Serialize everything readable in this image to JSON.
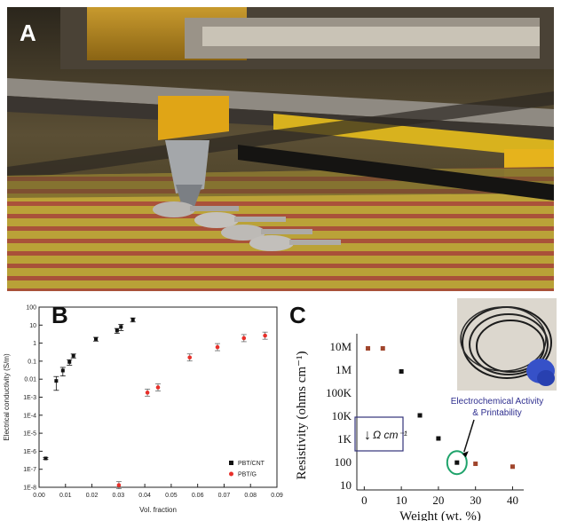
{
  "panels": {
    "a": {
      "letter": "A"
    },
    "b": {
      "letter": "B"
    },
    "c": {
      "letter": "C"
    }
  },
  "chart_data": [
    {
      "panel": "B",
      "type": "scatter",
      "xlabel": "Vol. fraction",
      "ylabel": "Electrical conductivity (S/m)",
      "xlim": [
        0,
        0.09
      ],
      "ylim_exponent": [
        -8,
        2
      ],
      "y_scale": "log",
      "x_ticks": [
        "0.00",
        "0.01",
        "0.02",
        "0.03",
        "0.04",
        "0.05",
        "0.06",
        "0.07",
        "0.08",
        "0.09"
      ],
      "y_ticks": [
        "100",
        "10",
        "1",
        "0.1",
        "0.01",
        "1E-3",
        "1E-4",
        "1E-5",
        "1E-6",
        "1E-7",
        "1E-8"
      ],
      "legend_placement": "bottom-right",
      "series": [
        {
          "name": "PBT/CNT",
          "color": "#111111",
          "points": [
            [
              0.0025,
              4e-07
            ],
            [
              0.0065,
              0.008
            ],
            [
              0.009,
              0.03
            ],
            [
              0.0115,
              0.09
            ],
            [
              0.013,
              0.2
            ],
            [
              0.0215,
              1.7
            ],
            [
              0.0295,
              5
            ],
            [
              0.031,
              8
            ],
            [
              0.0355,
              20
            ]
          ],
          "error_low": [
            5e-08,
            0.007,
            0.015,
            0.03,
            0.05,
            0.4,
            1.5,
            3,
            5
          ],
          "error_high": [
            5e-08,
            0.006,
            0.015,
            0.03,
            0.05,
            0.4,
            1.5,
            3,
            5
          ]
        },
        {
          "name": "PBT/G",
          "color": "#e8302a",
          "points": [
            [
              0.0302,
              1.3e-08
            ],
            [
              0.041,
              0.0018
            ],
            [
              0.045,
              0.0035
            ],
            [
              0.057,
              0.16
            ],
            [
              0.0675,
              0.6
            ],
            [
              0.0775,
              1.9
            ],
            [
              0.0855,
              2.6
            ]
          ]
        }
      ]
    },
    {
      "panel": "C",
      "type": "scatter",
      "xlabel": "Weight (wt. %)",
      "ylabel": "Resistivity (ohms cm⁻¹)",
      "xlim": [
        -2,
        43
      ],
      "y_scale": "log",
      "x_ticks": [
        "0",
        "10",
        "20",
        "30",
        "40"
      ],
      "y_ticks": [
        "10M",
        "1M",
        "100K",
        "10K",
        "1K",
        "100",
        "10"
      ],
      "points": [
        {
          "x": 1,
          "y": 8000000,
          "color": "#a0452c"
        },
        {
          "x": 5,
          "y": 8000000,
          "color": "#a0452c"
        },
        {
          "x": 10,
          "y": 800000,
          "color": "#111111"
        },
        {
          "x": 15,
          "y": 10000,
          "color": "#111111"
        },
        {
          "x": 20,
          "y": 1000,
          "color": "#111111"
        },
        {
          "x": 25,
          "y": 90,
          "color": "#111111"
        },
        {
          "x": 30,
          "y": 80,
          "color": "#a0452c"
        },
        {
          "x": 40,
          "y": 60,
          "color": "#a0452c"
        }
      ],
      "annotation": {
        "line1": "Electrochemical Activity",
        "line2": "& Printability",
        "color": "#2f2f8f"
      },
      "callout_box": {
        "text": "Ω cm⁻¹",
        "arrow": "↓"
      },
      "highlight_circle_color": "#1fa36b"
    }
  ]
}
